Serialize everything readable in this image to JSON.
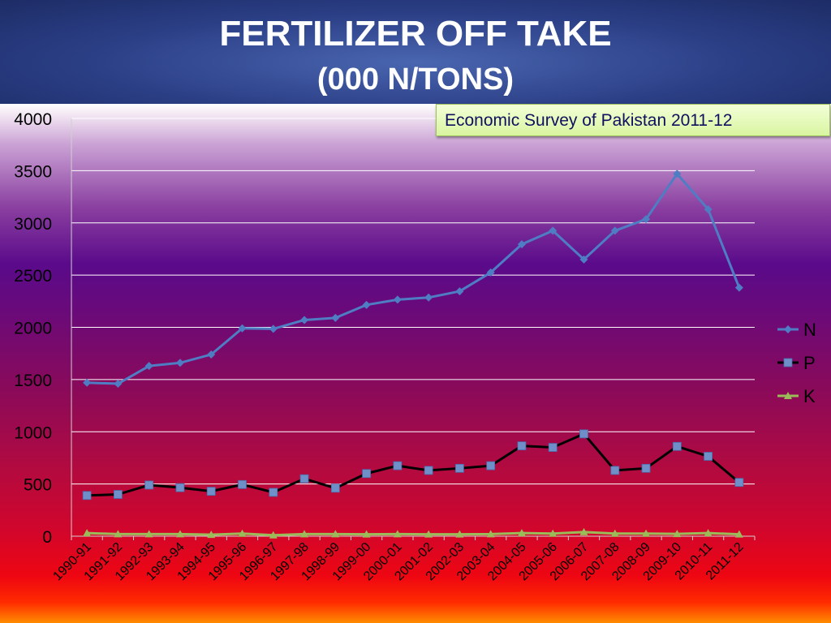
{
  "header": {
    "title": "FERTILIZER OFF TAKE",
    "subtitle": "(000 N/TONS)"
  },
  "source_note": "Economic Survey of Pakistan 2011-12",
  "colors": {
    "N": "#4f7dc4",
    "P": "#000000",
    "P_marker": "#6f8fc8",
    "K": "#9bbb59",
    "grid": "#ffffff"
  },
  "chart_data": {
    "type": "line",
    "title": "FERTILIZER OFF TAKE",
    "subtitle": "(000 N/TONS)",
    "xlabel": "",
    "ylabel": "",
    "ylim": [
      0,
      4000
    ],
    "yticks": [
      0,
      500,
      1000,
      1500,
      2000,
      2500,
      3000,
      3500,
      4000
    ],
    "grid": true,
    "legend_position": "right",
    "categories": [
      "1990-91",
      "1991-92",
      "1992-93",
      "1993-94",
      "1994-95",
      "1995-96",
      "1996-97",
      "1997-98",
      "1998-99",
      "1999-00",
      "2000-01",
      "2001-02",
      "2002-03",
      "2003-04",
      "2004-05",
      "2005-06",
      "2006-07",
      "2007-08",
      "2008-09",
      "2009-10",
      "2010-11",
      "2011-12"
    ],
    "series": [
      {
        "name": "N",
        "marker": "diamond",
        "values": [
          1470,
          1460,
          1630,
          1660,
          1740,
          1990,
          1985,
          2070,
          2090,
          2215,
          2265,
          2285,
          2345,
          2525,
          2795,
          2925,
          2650,
          2925,
          3035,
          3470,
          3130,
          2380
        ]
      },
      {
        "name": "P",
        "marker": "square",
        "values": [
          390,
          400,
          490,
          465,
          430,
          495,
          420,
          550,
          460,
          600,
          675,
          630,
          650,
          675,
          865,
          850,
          980,
          630,
          650,
          860,
          765,
          515
        ]
      },
      {
        "name": "K",
        "marker": "triangle",
        "values": [
          30,
          20,
          20,
          20,
          15,
          25,
          10,
          20,
          20,
          18,
          20,
          18,
          18,
          20,
          30,
          25,
          40,
          25,
          25,
          22,
          30,
          18
        ]
      }
    ]
  }
}
